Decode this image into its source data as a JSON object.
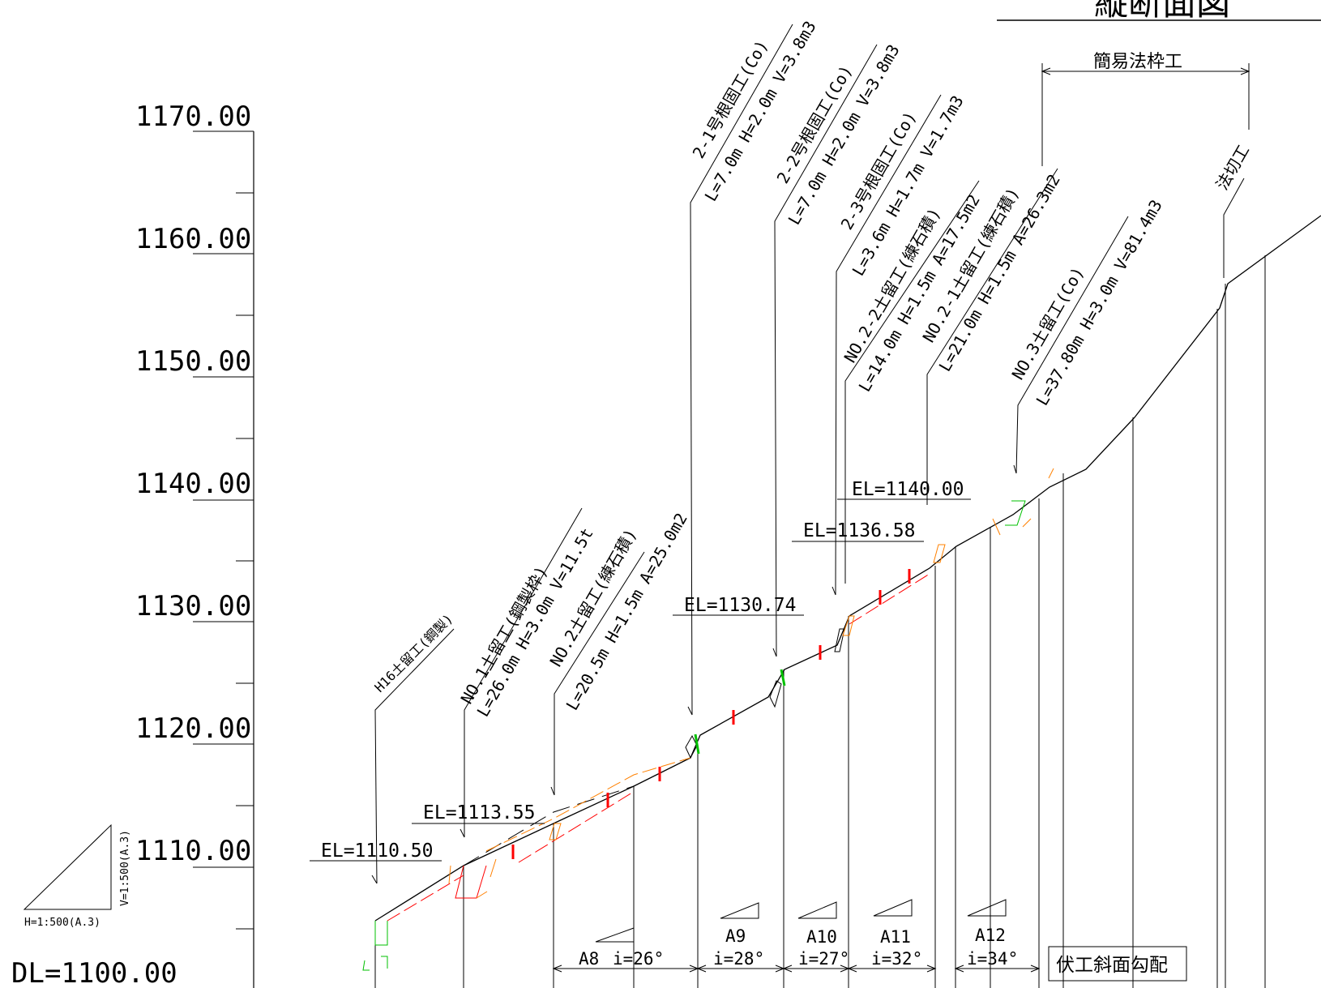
{
  "title": "縦断面図",
  "elevation_axis": {
    "labels": [
      "1170.00",
      "1160.00",
      "1150.00",
      "1140.00",
      "1130.00",
      "1120.00",
      "1110.00"
    ],
    "datum": "DL=1100.00"
  },
  "scale_note": {
    "horizontal": "H=1:500(A.3)",
    "vertical": "V=1:500(A.3)"
  },
  "top_span": {
    "label": "簡易法枠工"
  },
  "callouts": [
    {
      "name": "2-1号根固工(Co)",
      "spec": "L=7.0m H=2.0m V=3.8m3"
    },
    {
      "name": "2-2号根固工(Co)",
      "spec": "L=7.0m H=2.0m V=3.8m3"
    },
    {
      "name": "2-3号根固工(Co)",
      "spec": "L=3.6m H=1.7m V=1.7m3"
    },
    {
      "name": "NO.2-2土留工(練石積)",
      "spec": "L=14.0m H=1.5m A=17.5m2"
    },
    {
      "name": "NO.2-1土留工(練石積)",
      "spec": "L=21.0m H=1.5m A=26.3m2"
    },
    {
      "name": "NO.3土留工(Co)",
      "spec": "L=37.80m H=3.0m V=81.4m3"
    },
    {
      "name": "法切工",
      "spec": ""
    },
    {
      "name": "H16土留工(鋼製)",
      "spec": ""
    },
    {
      "name": "NO.1土留工(鋼製枠)",
      "spec": "L=26.0m H=3.0m V=11.5t"
    },
    {
      "name": "NO.2土留工(練石積)",
      "spec": "L=20.5m H=1.5m A=25.0m2"
    }
  ],
  "el_labels": [
    "EL=1110.50",
    "EL=1113.55",
    "EL=1130.74",
    "EL=1136.58",
    "EL=1140.00"
  ],
  "slopes": [
    {
      "area": "A8",
      "grade": "i=26°"
    },
    {
      "area": "A9",
      "grade": "i=28°"
    },
    {
      "area": "A10",
      "grade": "i=27°"
    },
    {
      "area": "A11",
      "grade": "i=32°"
    },
    {
      "area": "A12",
      "grade": "i=34°"
    }
  ],
  "slope_legend": "伏工斜面勾配",
  "colors": {
    "line": "#000000",
    "protection": "#ff0000",
    "excavation": "#ff8000",
    "existing": "#00c000"
  }
}
